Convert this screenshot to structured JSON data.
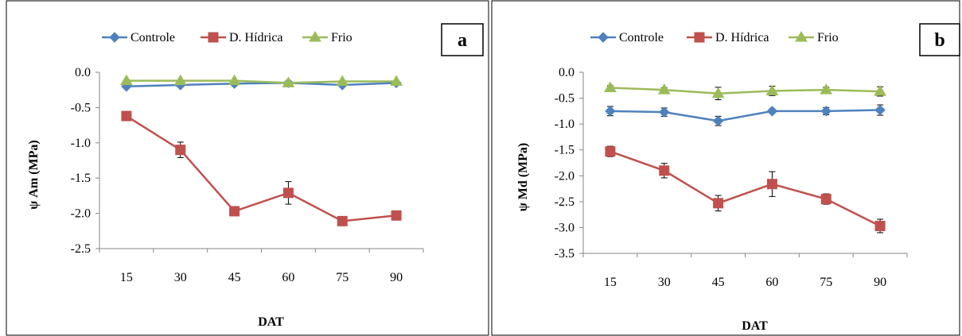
{
  "chart_data": [
    {
      "type": "line",
      "panel_label": "a",
      "categories": [
        "15",
        "30",
        "45",
        "60",
        "75",
        "90"
      ],
      "x": [
        15,
        30,
        45,
        60,
        75,
        90
      ],
      "xlabel": "DAT",
      "ylabel": "ψ Am  (MPa)",
      "ylim": [
        -2.5,
        0.0
      ],
      "yticks": [
        0.0,
        -0.5,
        -1.0,
        -1.5,
        -2.0,
        -2.5
      ],
      "ytick_labels": [
        "0.0",
        "-0.5",
        "-1.0",
        "-1.5",
        "-2.0",
        "-2.5"
      ],
      "grid": false,
      "legend": "top",
      "series": [
        {
          "name": "Controle",
          "color": "#4F81BD",
          "marker": "diamond",
          "values": [
            -0.2,
            -0.18,
            -0.16,
            -0.15,
            -0.18,
            -0.15
          ],
          "errors": [
            0.0,
            0.0,
            0.0,
            0.0,
            0.0,
            0.0
          ]
        },
        {
          "name": "D. Hídrica",
          "color": "#C0504D",
          "marker": "square",
          "values": [
            -0.62,
            -1.1,
            -1.97,
            -1.71,
            -2.11,
            -2.03
          ],
          "errors": [
            0.0,
            0.11,
            0.0,
            0.16,
            0.0,
            0.0
          ]
        },
        {
          "name": "Frio",
          "color": "#9BBB59",
          "marker": "triangle",
          "values": [
            -0.12,
            -0.12,
            -0.12,
            -0.15,
            -0.13,
            -0.13
          ],
          "errors": [
            0.0,
            0.0,
            0.0,
            0.0,
            0.0,
            0.0
          ]
        }
      ]
    },
    {
      "type": "line",
      "panel_label": "b",
      "categories": [
        "15",
        "30",
        "45",
        "60",
        "75",
        "90"
      ],
      "x": [
        15,
        30,
        45,
        60,
        75,
        90
      ],
      "xlabel": "DAT",
      "ylabel": "ψ Md (MPa)",
      "ylim": [
        -3.5,
        0.0
      ],
      "yticks": [
        0.0,
        -0.5,
        -1.0,
        -1.5,
        -2.0,
        -2.5,
        -3.0,
        -3.5
      ],
      "ytick_labels": [
        "0.0",
        "-0.5",
        "-1.0",
        "-1.5",
        "-2.0",
        "-2.5",
        "-3.0",
        "-3.5"
      ],
      "grid": false,
      "legend": "top",
      "series": [
        {
          "name": "Controle",
          "color": "#4F81BD",
          "marker": "diamond",
          "values": [
            -0.75,
            -0.77,
            -0.94,
            -0.75,
            -0.75,
            -0.73
          ],
          "errors": [
            0.09,
            0.08,
            0.09,
            0.04,
            0.07,
            0.1
          ]
        },
        {
          "name": "D. Hídrica",
          "color": "#C0504D",
          "marker": "square",
          "values": [
            -1.53,
            -1.9,
            -2.53,
            -2.16,
            -2.45,
            -2.97
          ],
          "errors": [
            0.1,
            0.14,
            0.15,
            0.24,
            0.1,
            0.13
          ]
        },
        {
          "name": "Frio",
          "color": "#9BBB59",
          "marker": "triangle",
          "values": [
            -0.3,
            -0.34,
            -0.41,
            -0.36,
            -0.34,
            -0.37
          ],
          "errors": [
            0.04,
            0.04,
            0.12,
            0.09,
            0.05,
            0.09
          ]
        }
      ]
    }
  ]
}
